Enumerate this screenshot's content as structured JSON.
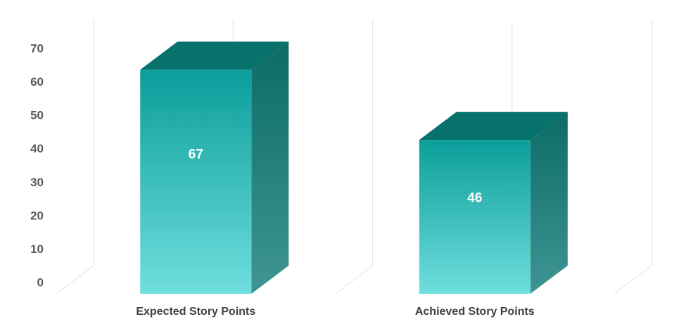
{
  "chart_data": {
    "type": "bar",
    "style": "3d-column",
    "categories": [
      "Expected Story Points",
      "Achieved Story Points"
    ],
    "values": [
      67,
      46
    ],
    "data_labels": [
      "67",
      "46"
    ],
    "y_ticks": [
      "0",
      "10",
      "20",
      "30",
      "40",
      "50",
      "60",
      "70"
    ],
    "ylim": [
      0,
      70
    ],
    "grid": true,
    "legend": "none",
    "colors": {
      "front_top": "#0b9e9a",
      "front_bottom": "#6fdede",
      "side_top": "#0c6b66",
      "side_bottom": "#3f9593",
      "top_face": "#07716c",
      "grid": "#e3e3e3"
    }
  }
}
